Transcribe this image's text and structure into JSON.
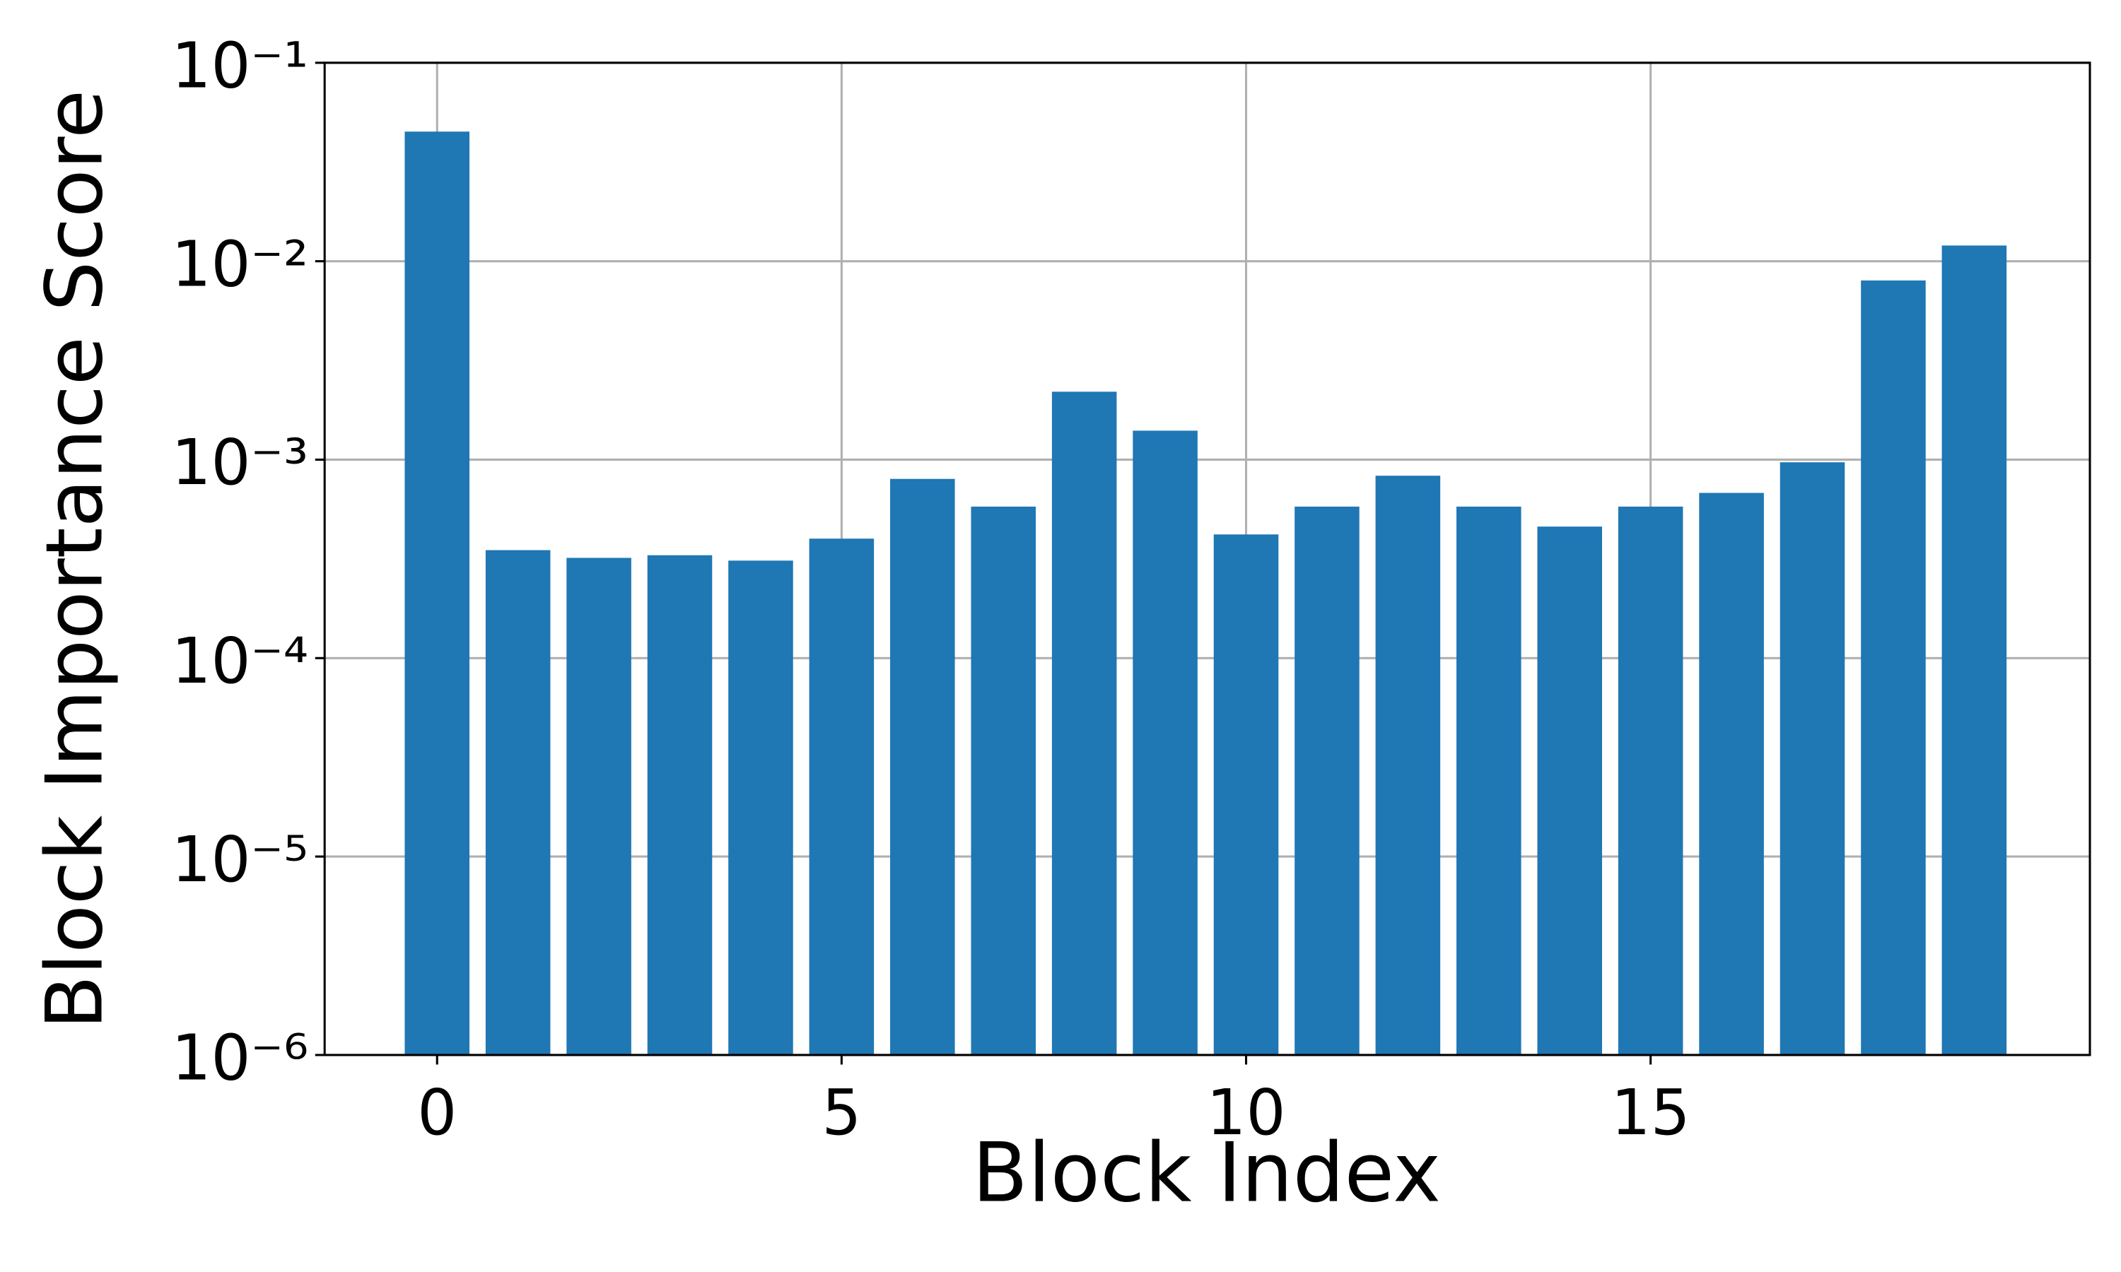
{
  "chart_data": {
    "type": "bar",
    "xlabel": "Block Index",
    "ylabel": "Block Importance Score",
    "x": [
      0,
      1,
      2,
      3,
      4,
      5,
      6,
      7,
      8,
      9,
      10,
      11,
      12,
      13,
      14,
      15,
      16,
      17,
      18,
      19
    ],
    "values": [
      0.045,
      0.00035,
      0.00032,
      0.00033,
      0.00031,
      0.0004,
      0.0008,
      0.00058,
      0.0022,
      0.0014,
      0.00042,
      0.00058,
      0.00083,
      0.00058,
      0.00046,
      0.00058,
      0.00068,
      0.00097,
      0.008,
      0.012
    ],
    "color": "#1f77b4",
    "bar_width": 0.8,
    "xlim": [
      -1.39,
      20.43
    ],
    "xticks": [
      0,
      5,
      10,
      15
    ],
    "ylim": [
      1e-06,
      0.1
    ],
    "yscale": "log",
    "yticks": [
      {
        "value": 1e-06,
        "label": "10⁻⁶"
      },
      {
        "value": 1e-05,
        "label": "10⁻⁵"
      },
      {
        "value": 0.0001,
        "label": "10⁻⁴"
      },
      {
        "value": 0.001,
        "label": "10⁻³"
      },
      {
        "value": 0.01,
        "label": "10⁻²"
      },
      {
        "value": 0.1,
        "label": "10⁻¹"
      }
    ],
    "grid": true
  }
}
